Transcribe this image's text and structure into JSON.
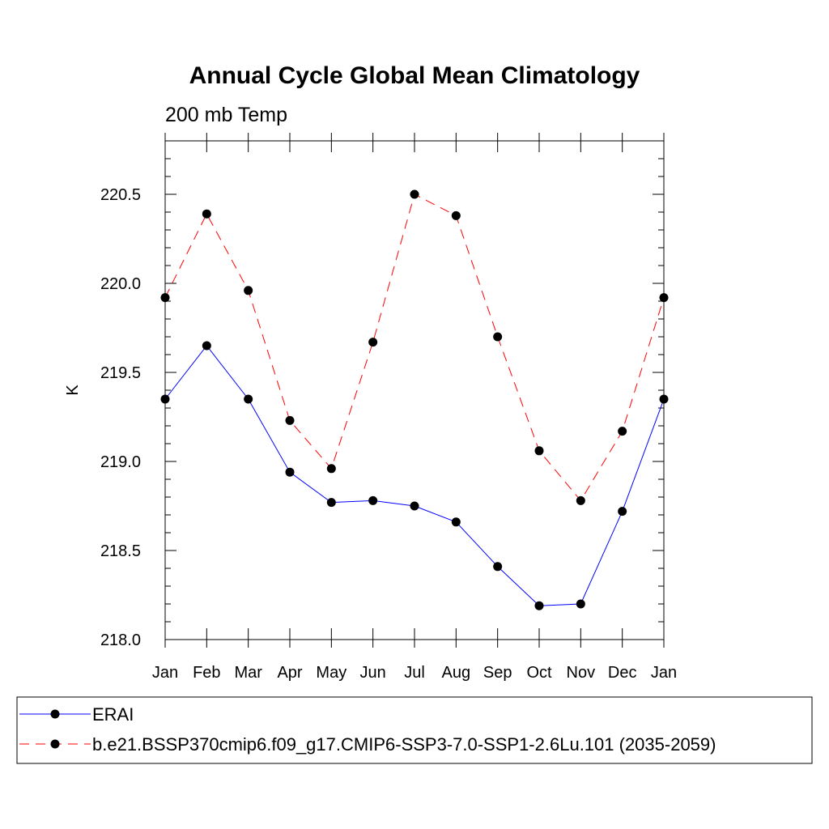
{
  "chart_data": {
    "type": "line",
    "title": "Annual Cycle Global Mean Climatology",
    "subtitle": "200 mb Temp",
    "xlabel": "",
    "ylabel": "K",
    "categories": [
      "Jan",
      "Feb",
      "Mar",
      "Apr",
      "May",
      "Jun",
      "Jul",
      "Aug",
      "Sep",
      "Oct",
      "Nov",
      "Dec",
      "Jan"
    ],
    "ylim": [
      218.0,
      220.8
    ],
    "yticks": [
      218.0,
      218.5,
      219.0,
      219.5,
      220.0,
      220.5
    ],
    "ytick_labels": [
      "218.0",
      "218.5",
      "219.0",
      "219.5",
      "220.0",
      "220.5"
    ],
    "minor_tick_step": 0.1,
    "grid": false,
    "legend_position": "bottom",
    "series": [
      {
        "name": "ERAI",
        "color": "#0000ff",
        "style": "solid",
        "marker": "circle",
        "values": [
          219.35,
          219.65,
          219.35,
          218.94,
          218.77,
          218.78,
          218.75,
          218.66,
          218.41,
          218.19,
          218.2,
          218.72,
          219.35
        ]
      },
      {
        "name": "b.e21.BSSP370cmip6.f09_g17.CMIP6-SSP3-7.0-SSP1-2.6Lu.101 (2035-2059)",
        "color": "#ff0000",
        "style": "dashed",
        "marker": "circle",
        "values": [
          219.92,
          220.39,
          219.96,
          219.23,
          218.96,
          219.67,
          220.5,
          220.38,
          219.7,
          219.06,
          218.78,
          219.17,
          219.92
        ]
      }
    ]
  }
}
